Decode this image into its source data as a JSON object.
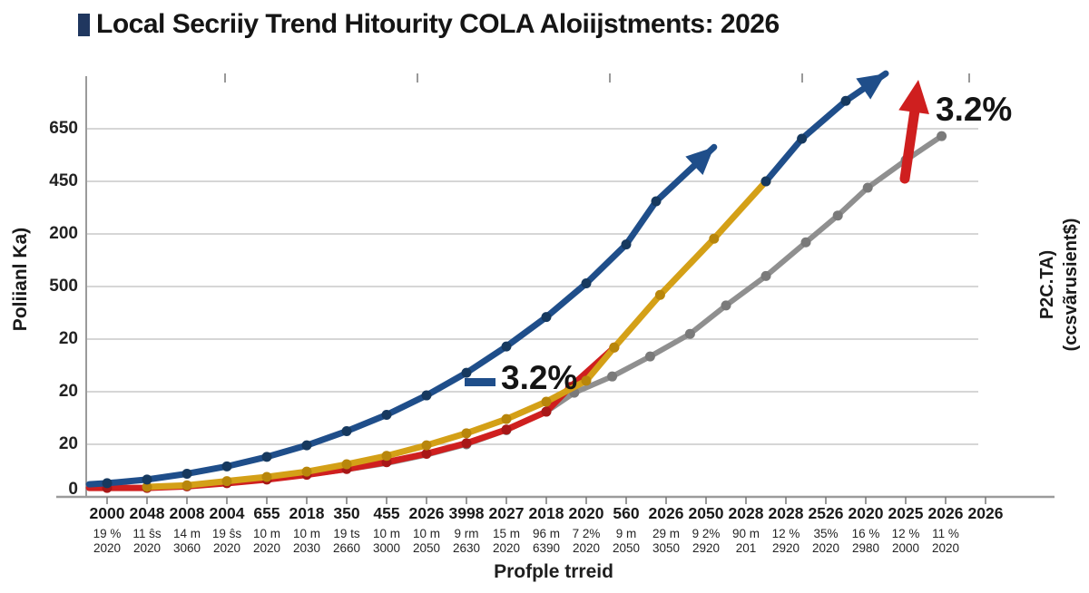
{
  "title": {
    "text": "Local Secriiy Trend Hitourity COLA Aloiijstments: 2026",
    "bullet_color": "#20375f"
  },
  "axes": {
    "x_title": "Profple trreid",
    "y_label_left": "Poliianl Ka)",
    "y_label_right_line1": "P2C.TA)",
    "y_label_right_line2": "(ccsvãrusient$)",
    "y_tick_labels_top_to_bottom": [
      "650",
      "450",
      "200",
      "500",
      "20",
      "20",
      "20",
      "0"
    ]
  },
  "chart_data": {
    "type": "line",
    "title": "Local Secriiy Trend Hitourity COLA Aloiijstments: 2026",
    "xlabel": "Profple trreid",
    "ylabel_left": "Poliianl Ka)",
    "ylabel_right": "P2C.TA) (ccsvãrusient$)",
    "grid": true,
    "legend": "none",
    "y_axis": {
      "tick_labels_bottom_to_top": [
        "0",
        "20",
        "20",
        "20",
        "500",
        "200",
        "450",
        "650"
      ],
      "note": "axis labels are garbled; series values below are in gridline units, 1 unit = one horizontal gridline spacing, 0 = bottom axis"
    },
    "x_categories": [
      {
        "l1": "2000",
        "l2": "19 %",
        "l3": "2020"
      },
      {
        "l1": "2048",
        "l2": "11 ŝs",
        "l3": "2020"
      },
      {
        "l1": "2008",
        "l2": "14 m",
        "l3": "3060"
      },
      {
        "l1": "2004",
        "l2": "19 ŝs",
        "l3": "2020"
      },
      {
        "l1": "655",
        "l2": "10 m",
        "l3": "2020"
      },
      {
        "l1": "2018",
        "l2": "10 m",
        "l3": "2030"
      },
      {
        "l1": "350",
        "l2": "19 ts",
        "l3": "2660"
      },
      {
        "l1": "455",
        "l2": "10 m",
        "l3": "3000"
      },
      {
        "l1": "2026",
        "l2": "10 m",
        "l3": "2050"
      },
      {
        "l1": "3998",
        "l2": "9 rm",
        "l3": "2630"
      },
      {
        "l1": "2027",
        "l2": "15 m",
        "l3": "2020"
      },
      {
        "l1": "2018",
        "l2": "96 m",
        "l3": "6390"
      },
      {
        "l1": "2020",
        "l2": "7 2%",
        "l3": "2020"
      },
      {
        "l1": "560",
        "l2": "9 m",
        "l3": "2050"
      },
      {
        "l1": "2026",
        "l2": "29 m",
        "l3": "3050"
      },
      {
        "l1": "2050",
        "l2": "9 2%",
        "l3": "2920"
      },
      {
        "l1": "2028",
        "l2": "90 m",
        "l3": "201"
      },
      {
        "l1": "2028",
        "l2": "12 %",
        "l3": "2920"
      },
      {
        "l1": "2526",
        "l2": "35%",
        "l3": "2020"
      },
      {
        "l1": "2020",
        "l2": "16 %",
        "l3": "2980"
      },
      {
        "l1": "2025",
        "l2": "12 %",
        "l3": "2000"
      },
      {
        "l1": "2026",
        "l2": "11 %",
        "l3": "2020"
      },
      {
        "l1": "2026",
        "l2": "",
        "l3": ""
      }
    ],
    "series": [
      {
        "name": "baseline-trend-gray",
        "color": "#8f8f8f",
        "marker_color": "#7a7a7a",
        "width": 6,
        "arrow_end": false,
        "points": [
          [
            5,
            0.42,
            0
          ],
          [
            6,
            0.52,
            0
          ],
          [
            7,
            0.64,
            0
          ],
          [
            8,
            0.8,
            0
          ],
          [
            9,
            1.0,
            1
          ],
          [
            10,
            1.27,
            1
          ],
          [
            11,
            1.62,
            1
          ],
          [
            11.7,
            1.98,
            1
          ],
          [
            12.65,
            2.29,
            1
          ],
          [
            13.6,
            2.67,
            1
          ],
          [
            14.6,
            3.1,
            1
          ],
          [
            15.5,
            3.64,
            1
          ],
          [
            16.5,
            4.2,
            1
          ],
          [
            17.5,
            4.84,
            1
          ],
          [
            18.3,
            5.35,
            1
          ],
          [
            19.05,
            5.88,
            1
          ],
          [
            20,
            6.4,
            1
          ],
          [
            20.9,
            6.86,
            1
          ]
        ]
      },
      {
        "name": "tertiary-trend-red",
        "color": "#cf1f1f",
        "marker_color": "#a81717",
        "width": 7,
        "arrow_end": false,
        "points": [
          [
            -0.45,
            0.17,
            0
          ],
          [
            0,
            0.17,
            1
          ],
          [
            1,
            0.17,
            1
          ],
          [
            2,
            0.2,
            1
          ],
          [
            3,
            0.26,
            1
          ],
          [
            4,
            0.33,
            1
          ],
          [
            5,
            0.42,
            1
          ],
          [
            6,
            0.53,
            1
          ],
          [
            7,
            0.66,
            1
          ],
          [
            8,
            0.82,
            1
          ],
          [
            9,
            1.02,
            1
          ],
          [
            10,
            1.28,
            1
          ],
          [
            11,
            1.62,
            1
          ],
          [
            11.6,
            2.09,
            1
          ],
          [
            12.7,
            2.84,
            1
          ]
        ]
      },
      {
        "name": "secondary-trend-gold",
        "color": "#d4a017",
        "marker_color": "#b8860b",
        "width": 7,
        "arrow_end": false,
        "points": [
          [
            1,
            0.19,
            1
          ],
          [
            2,
            0.22,
            1
          ],
          [
            3,
            0.3,
            1
          ],
          [
            4,
            0.38,
            1
          ],
          [
            5,
            0.48,
            1
          ],
          [
            6,
            0.62,
            1
          ],
          [
            7,
            0.78,
            1
          ],
          [
            8,
            0.98,
            1
          ],
          [
            9,
            1.21,
            1
          ],
          [
            10,
            1.48,
            1
          ],
          [
            11,
            1.81,
            1
          ],
          [
            12,
            2.21,
            1
          ],
          [
            12.7,
            2.84,
            1
          ],
          [
            13.85,
            3.84,
            1
          ],
          [
            15.2,
            4.91,
            1
          ],
          [
            16.5,
            6.0,
            1
          ]
        ]
      },
      {
        "name": "primary-trend-blue",
        "color": "#1f4e8a",
        "marker_color": "#16395f",
        "width": 7,
        "arrow_end": true,
        "points": [
          [
            -0.45,
            0.24,
            0
          ],
          [
            0,
            0.26,
            1
          ],
          [
            1,
            0.33,
            1
          ],
          [
            2,
            0.44,
            1
          ],
          [
            3,
            0.58,
            1
          ],
          [
            4,
            0.76,
            1
          ],
          [
            5,
            0.98,
            1
          ],
          [
            6,
            1.25,
            1
          ],
          [
            7,
            1.56,
            1
          ],
          [
            8,
            1.93,
            1
          ],
          [
            9,
            2.36,
            1
          ],
          [
            10,
            2.86,
            1
          ],
          [
            11,
            3.42,
            1
          ],
          [
            12,
            4.06,
            1
          ],
          [
            13,
            4.8,
            1
          ],
          [
            13.75,
            5.62,
            1
          ],
          [
            15.2,
            6.65,
            0
          ]
        ]
      },
      {
        "name": "upper-trend-blue",
        "color": "#1f4e8a",
        "marker_color": "#16395f",
        "width": 7,
        "arrow_end": true,
        "points": [
          [
            16.5,
            6.0,
            1
          ],
          [
            17.4,
            6.81,
            1
          ],
          [
            18.5,
            7.53,
            1
          ],
          [
            19.5,
            8.05,
            0
          ]
        ]
      }
    ],
    "annotations": [
      {
        "text": "3.2%",
        "type": "dash-label",
        "color": "#1f4e8a",
        "location": "mid-chart"
      },
      {
        "text": "3.2%",
        "type": "up-arrow-label",
        "color": "#cf1f1f",
        "location": "top-right"
      }
    ]
  }
}
